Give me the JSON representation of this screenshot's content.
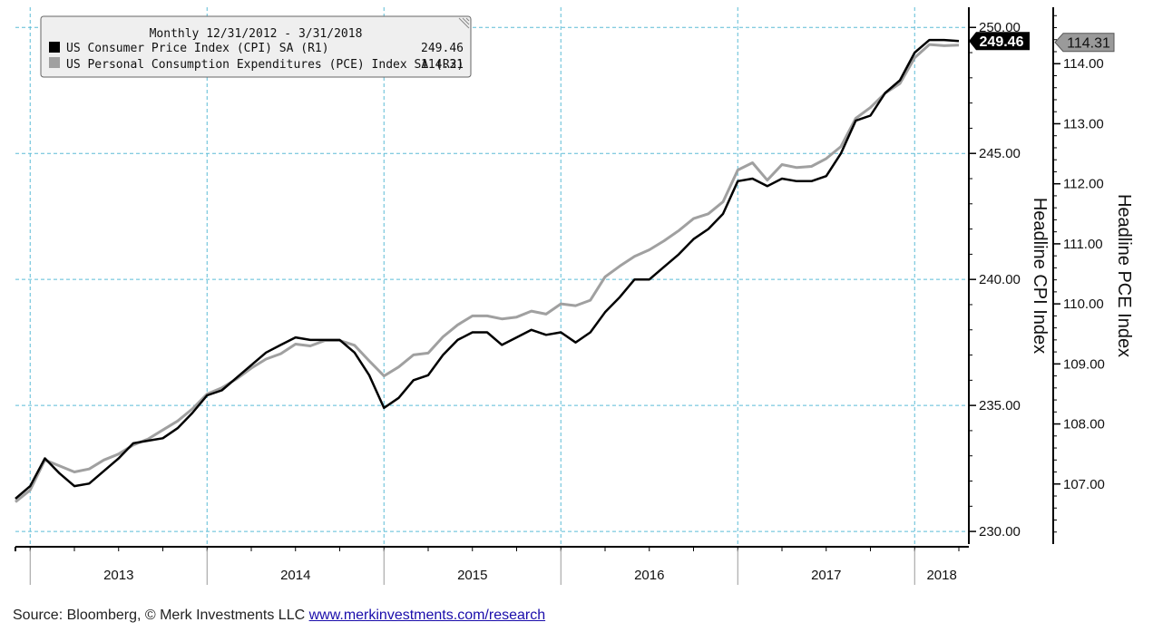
{
  "chart_data": {
    "type": "line",
    "legend": {
      "header": "Monthly 12/31/2012 - 3/31/2018",
      "entries": [
        {
          "label": "US Consumer Price Index (CPI) SA (R1)",
          "last": "249.46",
          "color": "#000000"
        },
        {
          "label": "US Personal Consumption Expenditures (PCE) Index SA (R2)",
          "last": "114.31",
          "color": "#a0a0a0"
        }
      ],
      "placement": "top-left"
    },
    "x_start": "2012-12",
    "x_end": "2018-03",
    "years": [
      "2013",
      "2014",
      "2015",
      "2016",
      "2017",
      "2018"
    ],
    "left_axis": {
      "label": "Headline CPI Index",
      "ylim": [
        229.5,
        250.8
      ],
      "ticks": [
        230,
        235,
        240,
        245,
        250
      ],
      "tick_labels": [
        "230.00",
        "235.00",
        "240.00",
        "245.00",
        "250.00"
      ],
      "last_value_label": "249.46"
    },
    "right_axis": {
      "label": "Headline PCE Index",
      "ylim": [
        106.0,
        114.94
      ],
      "ticks": [
        107,
        108,
        109,
        110,
        111,
        112,
        113,
        114
      ],
      "tick_labels": [
        "107.00",
        "108.00",
        "109.00",
        "110.00",
        "111.00",
        "112.00",
        "113.00",
        "114.00"
      ],
      "last_value_label": "114.31"
    },
    "series": [
      {
        "name": "US Consumer Price Index (CPI) SA (R1)",
        "axis": "left",
        "color": "#000000",
        "values": [
          231.3,
          231.8,
          232.9,
          232.3,
          231.8,
          231.9,
          232.4,
          232.9,
          233.5,
          233.6,
          233.7,
          234.1,
          234.7,
          235.4,
          235.6,
          236.1,
          236.6,
          237.1,
          237.4,
          237.7,
          237.6,
          237.6,
          237.6,
          237.1,
          236.2,
          234.9,
          235.3,
          236.0,
          236.2,
          237.0,
          237.6,
          237.9,
          237.9,
          237.4,
          237.7,
          238.0,
          237.8,
          237.9,
          237.5,
          237.9,
          238.7,
          239.3,
          240.0,
          240.0,
          240.5,
          241.0,
          241.6,
          242.0,
          242.6,
          243.9,
          244.0,
          243.7,
          244.0,
          243.9,
          243.9,
          244.1,
          245.0,
          246.3,
          246.5,
          247.4,
          247.9,
          249.0,
          249.5,
          249.5,
          249.46
        ]
      },
      {
        "name": "US Personal Consumption Expenditures (PCE) Index SA (R2)",
        "axis": "right",
        "color": "#a0a0a0",
        "values": [
          106.7,
          106.9,
          107.4,
          107.3,
          107.2,
          107.25,
          107.4,
          107.5,
          107.65,
          107.75,
          107.9,
          108.05,
          108.25,
          108.5,
          108.6,
          108.75,
          108.93,
          109.08,
          109.17,
          109.33,
          109.3,
          109.39,
          109.39,
          109.31,
          109.05,
          108.8,
          108.95,
          109.15,
          109.18,
          109.45,
          109.65,
          109.8,
          109.8,
          109.75,
          109.78,
          109.88,
          109.83,
          110.0,
          109.97,
          110.06,
          110.45,
          110.63,
          110.79,
          110.9,
          111.05,
          111.22,
          111.42,
          111.5,
          111.7,
          112.23,
          112.35,
          112.06,
          112.32,
          112.27,
          112.29,
          112.42,
          112.62,
          113.09,
          113.27,
          113.51,
          113.67,
          114.1,
          114.32,
          114.3,
          114.31
        ]
      }
    ]
  },
  "source": {
    "text": "Source: Bloomberg, © Merk Investments LLC ",
    "link": "www.merkinvestments.com/research"
  }
}
